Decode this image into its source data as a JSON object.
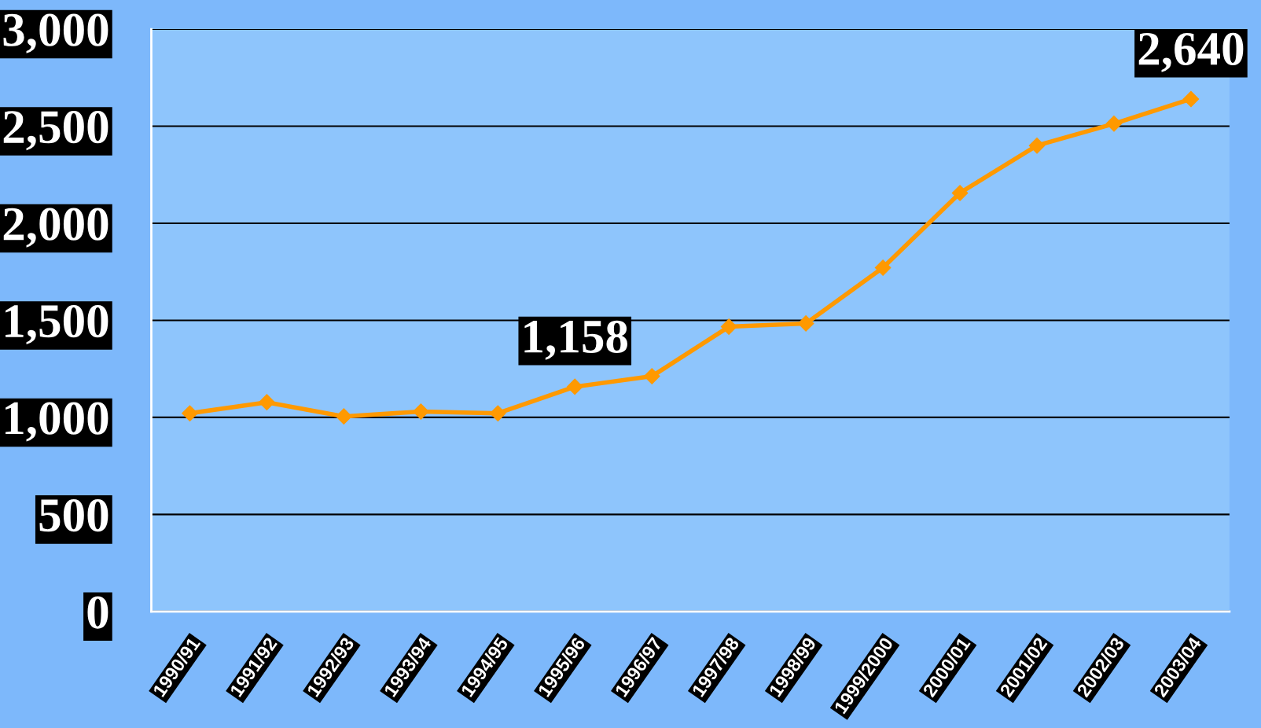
{
  "chart_data": {
    "type": "line",
    "categories": [
      "1990/91",
      "1991/92",
      "1992/93",
      "1993/94",
      "1994/95",
      "1995/96",
      "1996/97",
      "1997/98",
      "1998/99",
      "1999/2000",
      "2000/01",
      "2001/02",
      "2002/03",
      "2003/04"
    ],
    "series": [
      {
        "color": "#ff9900",
        "values": [
          1021,
          1078,
          1005,
          1030,
          1021,
          1158,
          1212,
          1467,
          1484,
          1771,
          2156,
          2400,
          2513,
          2640
        ],
        "value_labels": [
          null,
          null,
          null,
          null,
          null,
          "1,158",
          null,
          null,
          null,
          null,
          null,
          null,
          null,
          "2,640"
        ]
      }
    ],
    "ylim": [
      0,
      3000
    ],
    "yticks": [
      {
        "value": 0,
        "label": "0"
      },
      {
        "value": 500,
        "label": "500"
      },
      {
        "value": 1000,
        "label": "1,000"
      },
      {
        "value": 1500,
        "label": "1,500"
      },
      {
        "value": 2000,
        "label": "2,000"
      },
      {
        "value": 2500,
        "label": "2,500"
      },
      {
        "value": 3000,
        "label": "3,000"
      }
    ],
    "grid": "y",
    "marker": "diamond",
    "line_style": "solid"
  }
}
